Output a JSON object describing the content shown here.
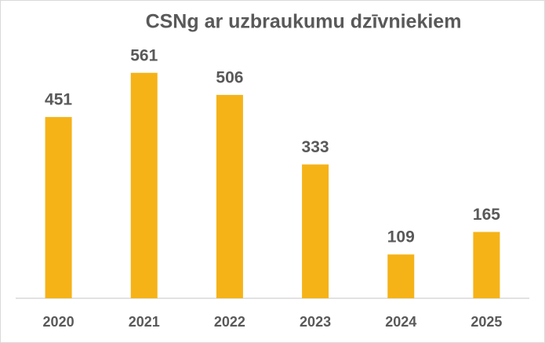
{
  "chart_data": {
    "type": "bar",
    "title": "CSNg ar uzbraukumu dzīvniekiem",
    "categories": [
      "2020",
      "2021",
      "2022",
      "2023",
      "2024",
      "2025"
    ],
    "values": [
      451,
      561,
      506,
      333,
      109,
      165
    ],
    "color": "#f5b318",
    "grid": false
  }
}
